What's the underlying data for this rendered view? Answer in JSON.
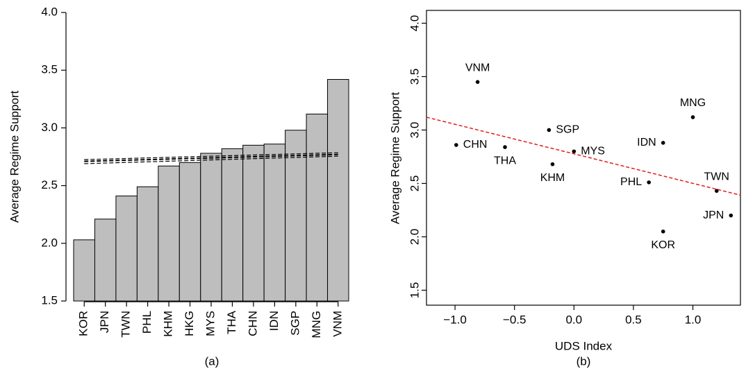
{
  "chart_data": [
    {
      "type": "bar",
      "y_label": "Average Regime Support",
      "caption": "(a)",
      "categories": [
        "KOR",
        "JPN",
        "TWN",
        "PHL",
        "KHM",
        "HKG",
        "MYS",
        "THA",
        "CHN",
        "IDN",
        "SGP",
        "MNG",
        "VNM"
      ],
      "values": [
        2.03,
        2.21,
        2.41,
        2.49,
        2.67,
        2.7,
        2.78,
        2.82,
        2.85,
        2.86,
        2.98,
        3.12,
        3.42
      ],
      "color": "#bebebe",
      "fit": {
        "values": [
          2.71,
          2.77
        ],
        "lower": [
          2.69,
          2.755
        ],
        "upper": [
          2.725,
          2.785
        ],
        "color": "#000000"
      },
      "ylim": [
        1.5,
        4.0
      ],
      "yticks": [
        1.5,
        {
          "value": 2.0,
          "label": "2.0"
        },
        2.5,
        {
          "value": 3.0,
          "label": "3.0"
        },
        3.5,
        {
          "value": 4.0,
          "label": "4.0"
        }
      ]
    },
    {
      "type": "scatter",
      "x_label": "UDS Index",
      "y_label": "Average Regime Support",
      "caption": "(b)",
      "labels": [
        "VNM",
        "CHN",
        "THA",
        "SGP",
        "MYS",
        "KHM",
        "IDN",
        "MNG",
        "PHL",
        "TWN",
        "JPN",
        "KOR"
      ],
      "label_positions": [
        "top",
        "right",
        "bottom",
        "right",
        "right",
        "bottom",
        "left",
        "top",
        "left",
        "top",
        "left",
        "bottom"
      ],
      "x": [
        -0.81,
        -0.99,
        -0.58,
        -0.21,
        0.0,
        -0.18,
        0.75,
        1.0,
        0.63,
        1.2,
        1.32,
        0.75
      ],
      "values": [
        3.45,
        2.86,
        2.84,
        3.0,
        2.8,
        2.68,
        2.88,
        3.12,
        2.51,
        2.43,
        2.2,
        2.05
      ],
      "color": "#000000",
      "fit": {
        "x": [
          -1.24,
          1.4
        ],
        "y": [
          3.12,
          2.39
        ],
        "color": "#e41a1c"
      },
      "xlim": [
        -1.24,
        1.4
      ],
      "ylim": [
        1.36,
        4.12
      ],
      "xticks": [
        {
          "value": -1.0,
          "label": "−1.0"
        },
        {
          "value": -0.5,
          "label": "−0.5"
        },
        {
          "value": 0.0,
          "label": "0.0"
        },
        0.5,
        {
          "value": 1.0,
          "label": "1.0"
        }
      ],
      "yticks": [
        1.5,
        {
          "value": 2.0,
          "label": "2.0"
        },
        2.5,
        {
          "value": 3.0,
          "label": "3.0"
        },
        3.5,
        {
          "value": 4.0,
          "label": "4.0"
        }
      ]
    }
  ]
}
